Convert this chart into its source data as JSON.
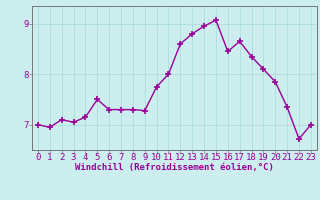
{
  "x": [
    0,
    1,
    2,
    3,
    4,
    5,
    6,
    7,
    8,
    9,
    10,
    11,
    12,
    13,
    14,
    15,
    16,
    17,
    18,
    19,
    20,
    21,
    22,
    23
  ],
  "y": [
    7.0,
    6.95,
    7.1,
    7.05,
    7.15,
    7.5,
    7.3,
    7.3,
    7.3,
    7.28,
    7.75,
    8.0,
    8.6,
    8.8,
    8.95,
    9.07,
    8.45,
    8.65,
    8.35,
    8.1,
    7.85,
    7.35,
    6.72,
    7.0
  ],
  "line_color": "#990099",
  "marker": "+",
  "marker_size": 4,
  "marker_lw": 1.2,
  "bg_color": "#cceeee",
  "grid_color": "#aadddd",
  "xlabel": "Windchill (Refroidissement éolien,°C)",
  "xlabel_color": "#990099",
  "xlabel_fontsize": 6.5,
  "ytick_labels": [
    "7",
    "8",
    "9"
  ],
  "ytick_vals": [
    7,
    8,
    9
  ],
  "xtick_vals": [
    0,
    1,
    2,
    3,
    4,
    5,
    6,
    7,
    8,
    9,
    10,
    11,
    12,
    13,
    14,
    15,
    16,
    17,
    18,
    19,
    20,
    21,
    22,
    23
  ],
  "xlim": [
    -0.5,
    23.5
  ],
  "ylim": [
    6.5,
    9.35
  ],
  "tick_fontsize": 6.5,
  "tick_color": "#990099",
  "spine_color": "#777777",
  "linewidth": 1.0
}
